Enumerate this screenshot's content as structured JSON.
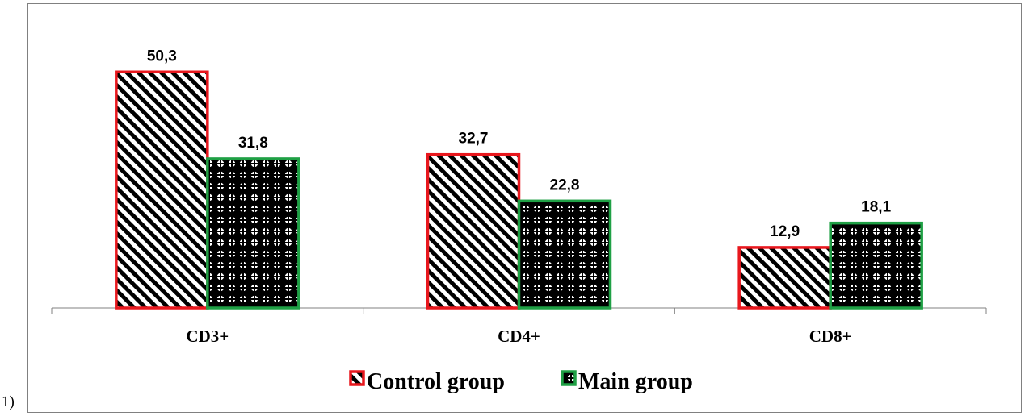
{
  "panel_label": "1)",
  "chart_data": {
    "type": "bar",
    "categories": [
      "CD3+",
      "CD4+",
      "CD8+"
    ],
    "series": [
      {
        "name": "Control group",
        "values": [
          50.3,
          32.7,
          12.9
        ],
        "labels": [
          "50,3",
          "32,7",
          "12,9"
        ],
        "border_color": "#e8171d",
        "pattern": "diagonal-stripes"
      },
      {
        "name": "Main group",
        "values": [
          31.8,
          22.8,
          18.1
        ],
        "labels": [
          "31,8",
          "22,8",
          "18,1"
        ],
        "border_color": "#1fa045",
        "pattern": "checker-dots"
      }
    ],
    "ylim": [
      0,
      55
    ],
    "legend_position": "bottom",
    "grid": false
  }
}
